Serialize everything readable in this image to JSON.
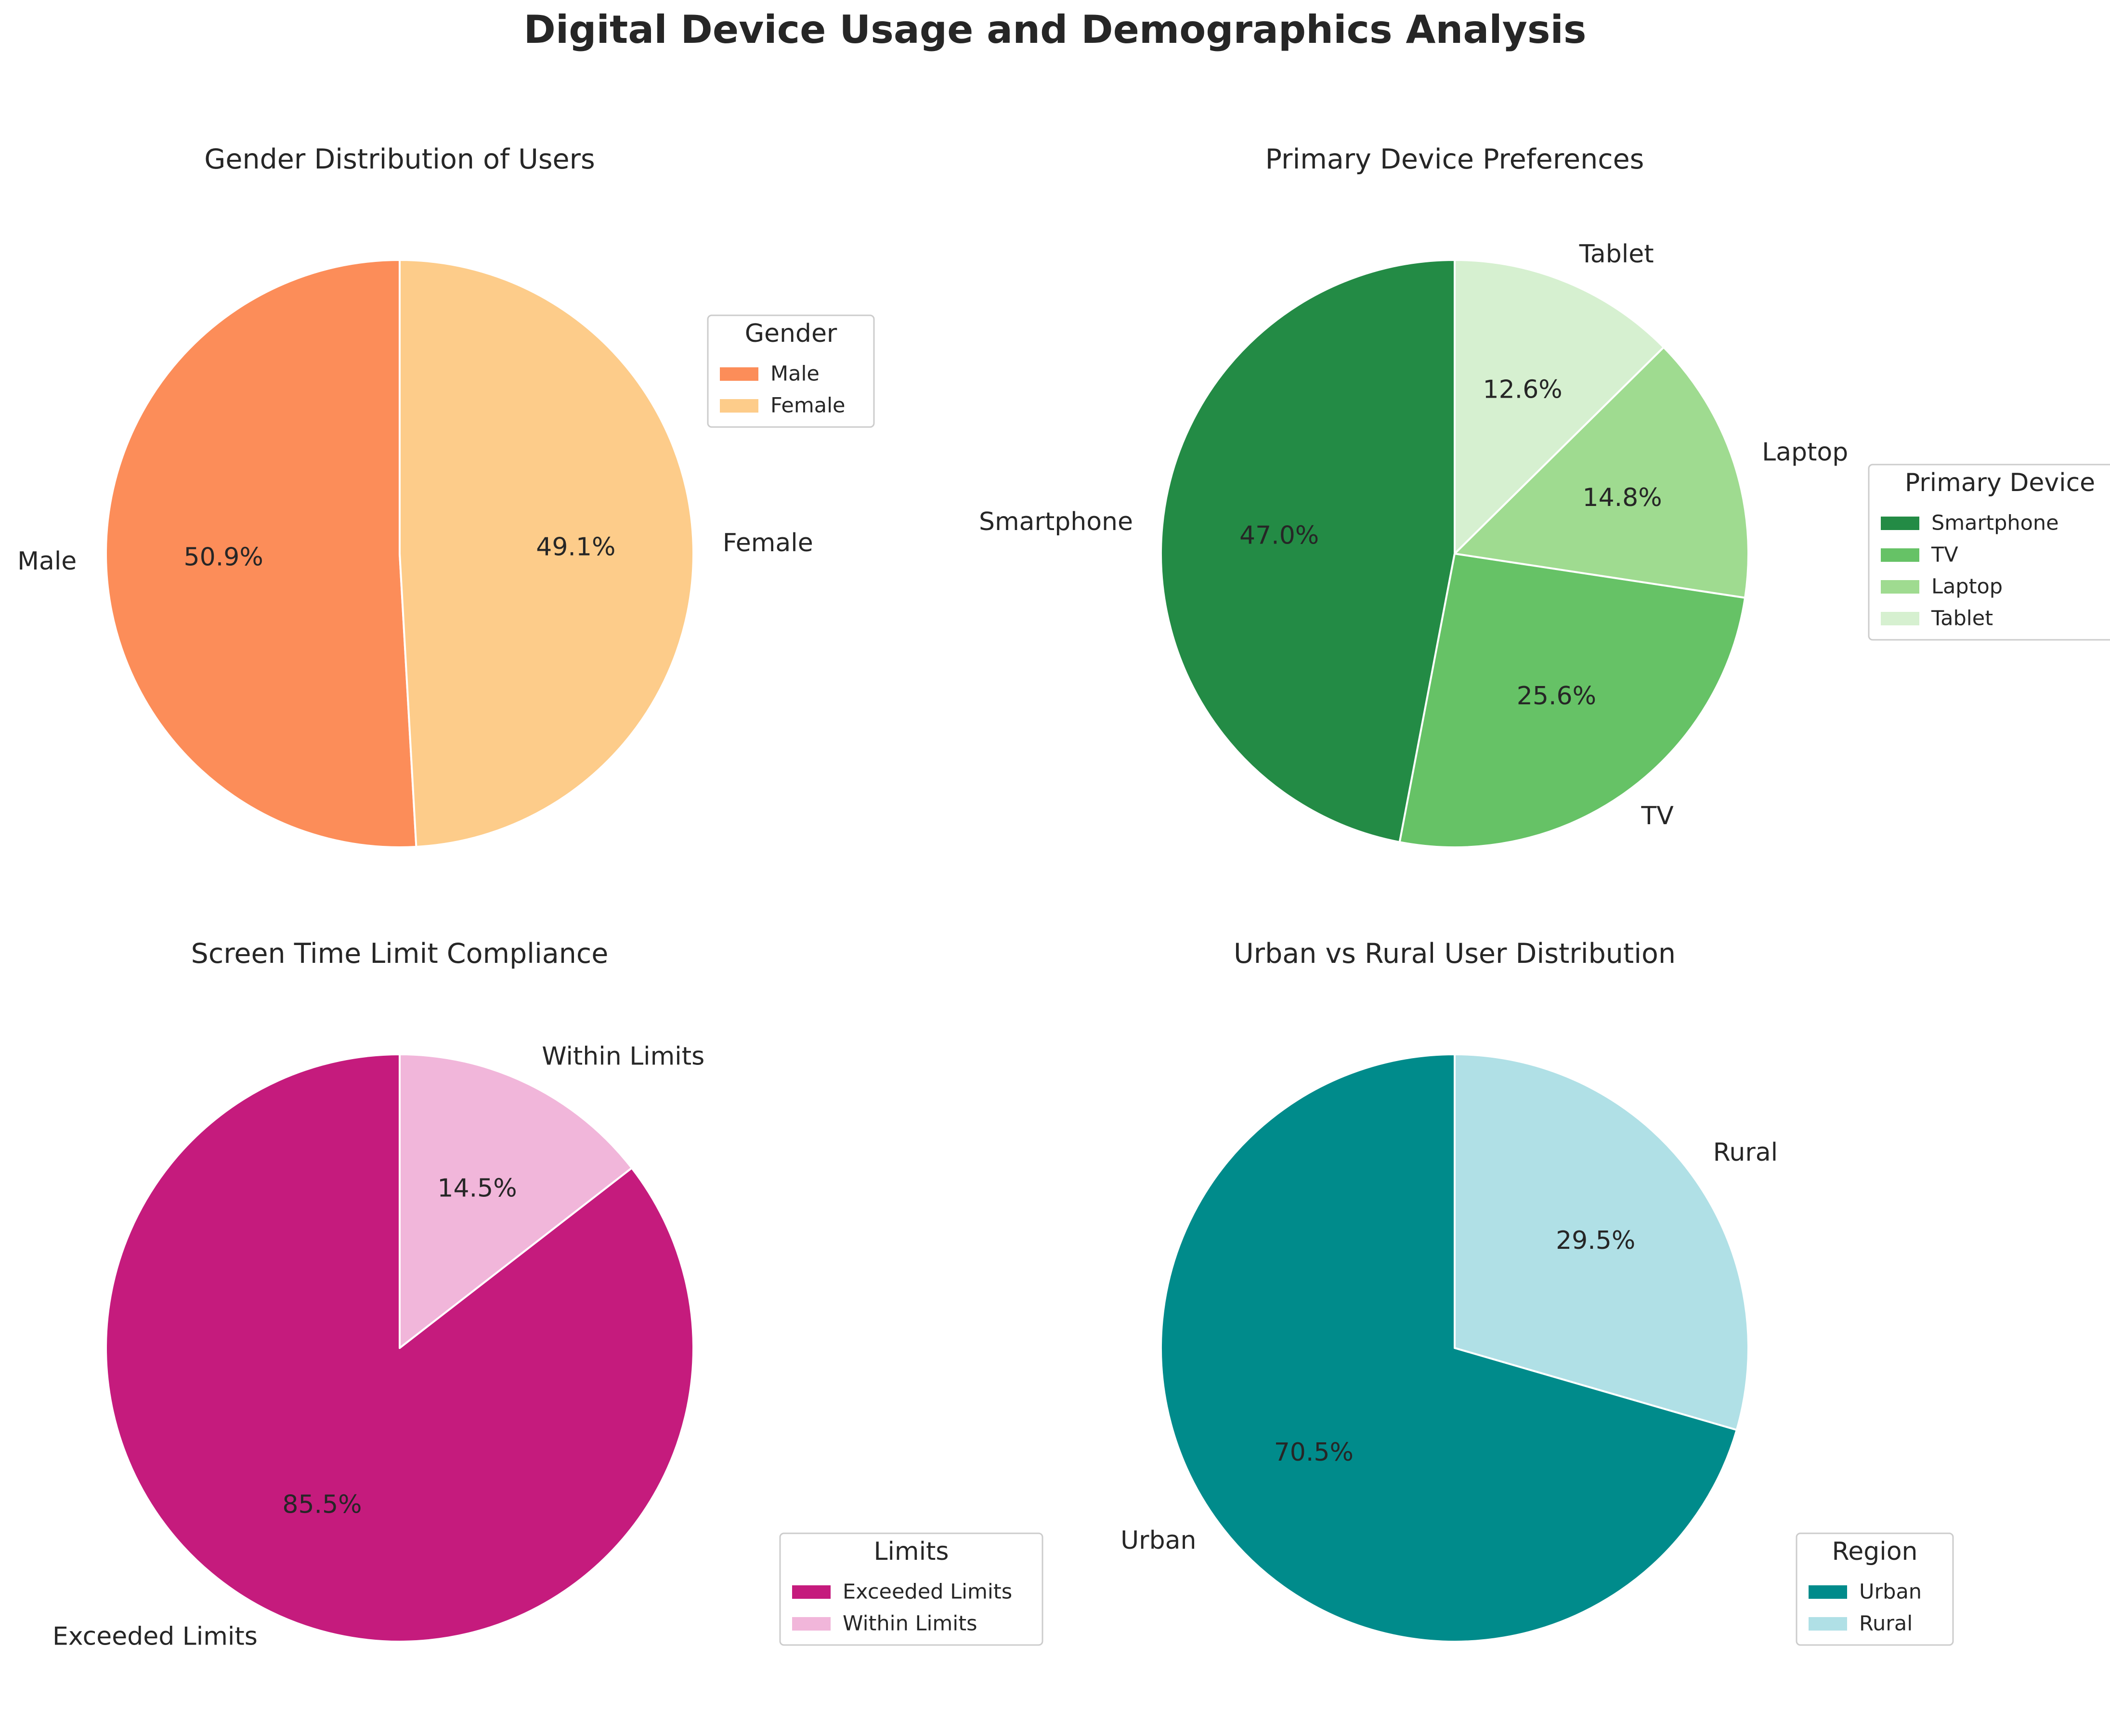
{
  "figure_title": "Digital Device Usage and Demographics Analysis",
  "chart_data": [
    {
      "type": "pie",
      "title": "Gender Distribution of Users",
      "legend_title": "Gender",
      "legend_position": "right",
      "start_angle": 90,
      "direction": "counterclockwise",
      "slices": [
        {
          "label": "Male",
          "value": 50.9,
          "color": "#FC8D59"
        },
        {
          "label": "Female",
          "value": 49.1,
          "color": "#FDCC8A"
        }
      ]
    },
    {
      "type": "pie",
      "title": "Primary Device Preferences",
      "legend_title": "Primary Device",
      "legend_position": "right",
      "start_angle": 90,
      "direction": "counterclockwise",
      "slices": [
        {
          "label": "Smartphone",
          "value": 47.0,
          "color": "#238B45"
        },
        {
          "label": "TV",
          "value": 25.6,
          "color": "#66C266"
        },
        {
          "label": "Laptop",
          "value": 14.8,
          "color": "#9FDB90"
        },
        {
          "label": "Tablet",
          "value": 12.6,
          "color": "#D6F0D0"
        }
      ]
    },
    {
      "type": "pie",
      "title": "Screen Time Limit Compliance",
      "legend_title": "Limits",
      "legend_position": "right",
      "start_angle": 90,
      "direction": "counterclockwise",
      "slices": [
        {
          "label": "Exceeded Limits",
          "value": 85.5,
          "color": "#C51B7D"
        },
        {
          "label": "Within Limits",
          "value": 14.5,
          "color": "#F1B6DA"
        }
      ]
    },
    {
      "type": "pie",
      "title": "Urban vs Rural User Distribution",
      "legend_title": "Region",
      "legend_position": "right",
      "start_angle": 90,
      "direction": "counterclockwise",
      "slices": [
        {
          "label": "Urban",
          "value": 70.5,
          "color": "#008B8B"
        },
        {
          "label": "Rural",
          "value": 29.5,
          "color": "#B0E0E6"
        }
      ]
    }
  ]
}
